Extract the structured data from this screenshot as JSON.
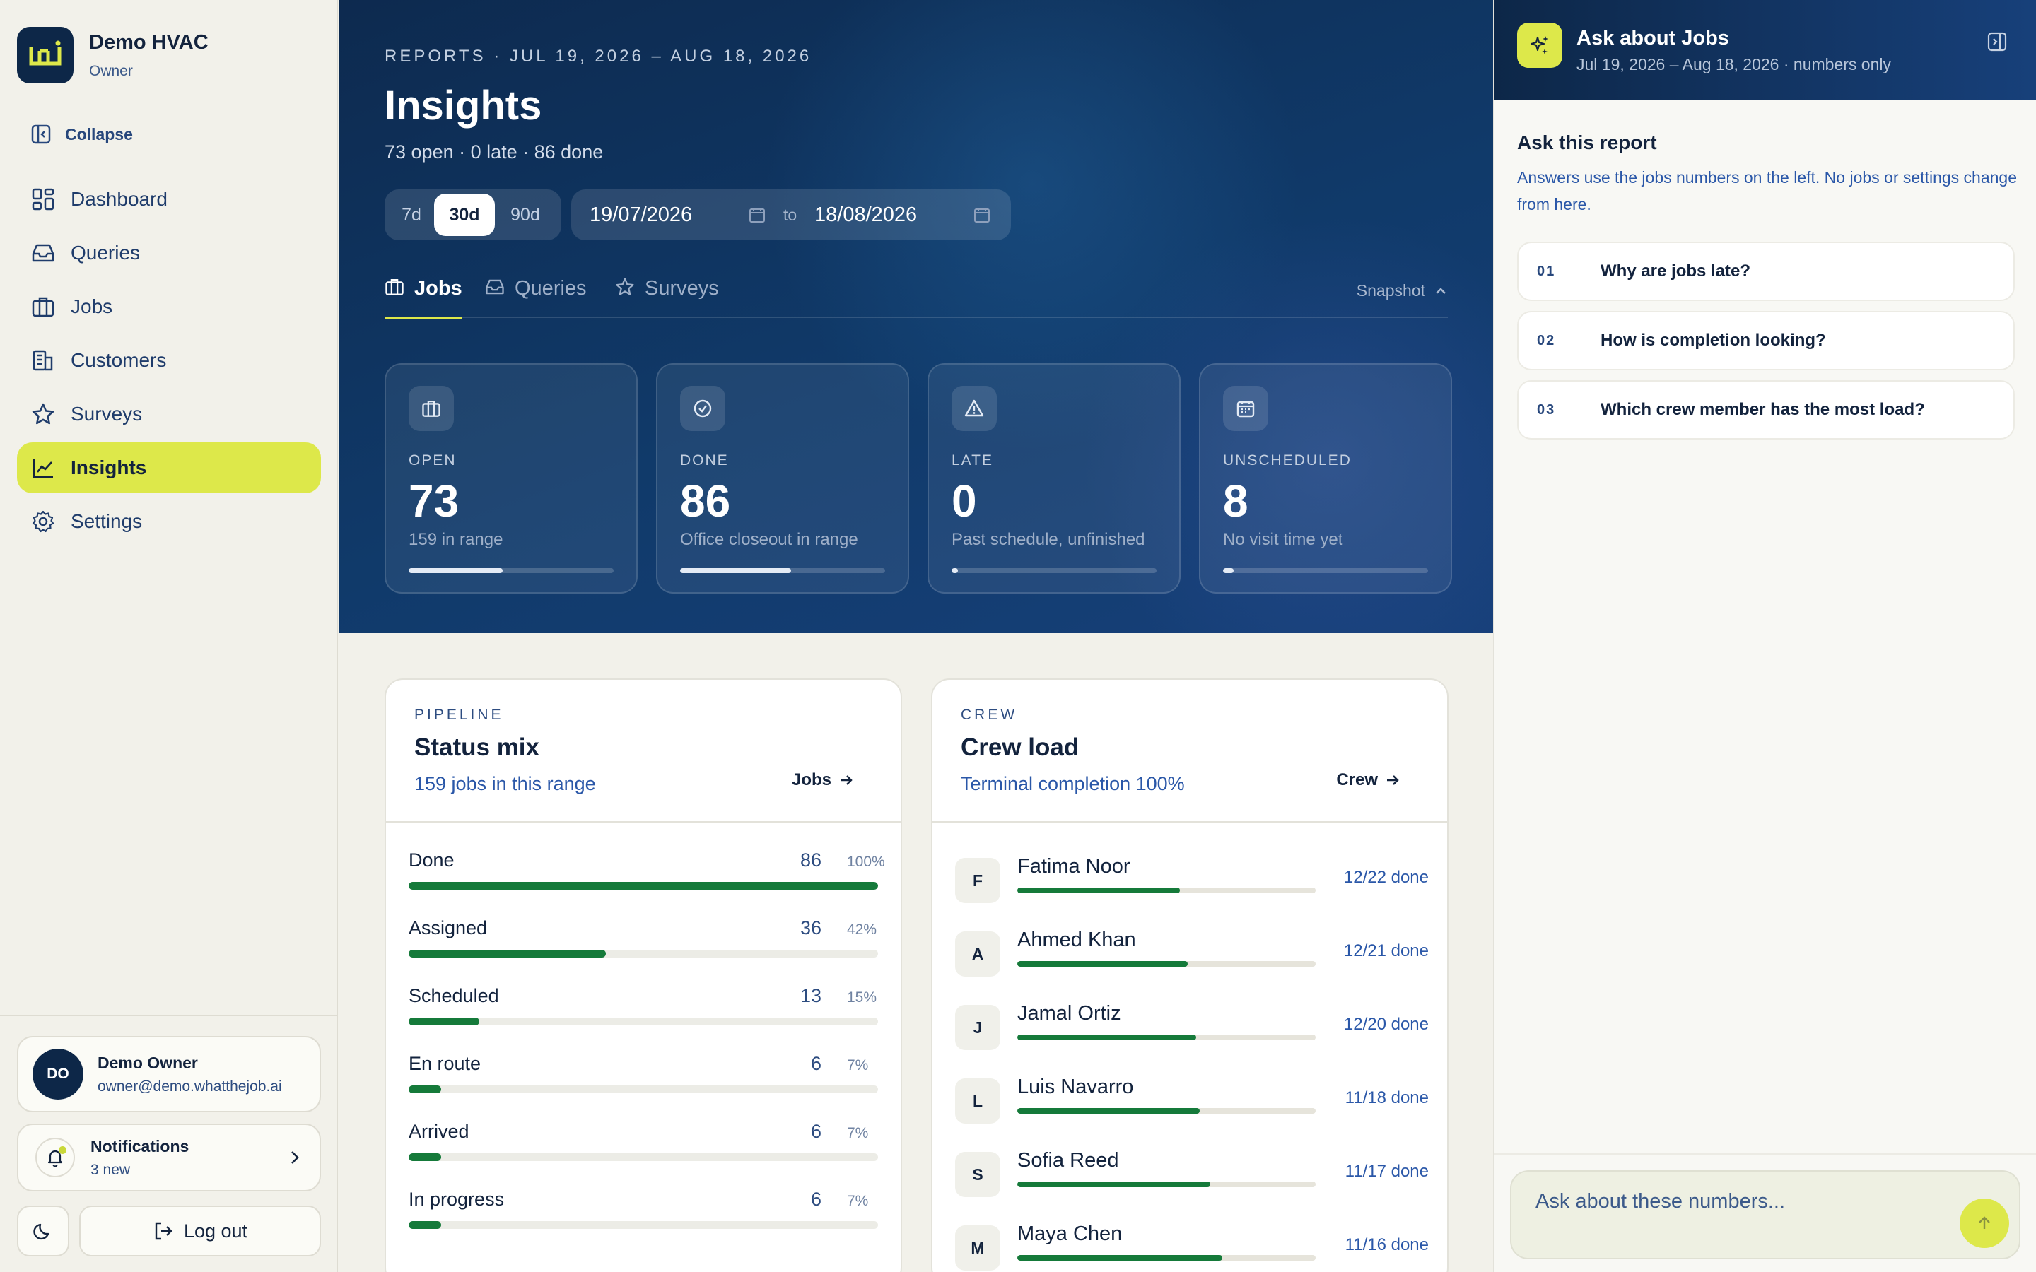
{
  "brand": {
    "name": "Demo HVAC",
    "role": "Owner"
  },
  "sidebar": {
    "collapse_label": "Collapse",
    "items": [
      {
        "label": "Dashboard",
        "icon": "dashboard-icon"
      },
      {
        "label": "Queries",
        "icon": "inbox-icon"
      },
      {
        "label": "Jobs",
        "icon": "briefcase-icon"
      },
      {
        "label": "Customers",
        "icon": "building-icon"
      },
      {
        "label": "Surveys",
        "icon": "star-icon"
      },
      {
        "label": "Insights",
        "icon": "chart-line-icon",
        "active": true
      },
      {
        "label": "Settings",
        "icon": "gear-icon"
      }
    ],
    "user": {
      "initials": "DO",
      "name": "Demo Owner",
      "email": "owner@demo.whatthejob.ai"
    },
    "notifications": {
      "title": "Notifications",
      "count_label": "3 new"
    },
    "logout_label": "Log out"
  },
  "hero": {
    "eyebrow": "REPORTS · JUL 19, 2026 – AUG 18, 2026",
    "title": "Insights",
    "summary": "73 open · 0 late · 86 done",
    "ranges": [
      "7d",
      "30d",
      "90d"
    ],
    "selected_range": "30d",
    "date_from": "19/07/2026",
    "date_to_label": "to",
    "date_to": "18/08/2026",
    "tabs": [
      {
        "label": "Jobs",
        "icon": "briefcase-icon",
        "active": true
      },
      {
        "label": "Queries",
        "icon": "inbox-icon"
      },
      {
        "label": "Surveys",
        "icon": "star-icon"
      }
    ],
    "snapshot_label": "Snapshot",
    "kpis": [
      {
        "label": "OPEN",
        "value": "73",
        "sub": "159 in range",
        "progress": 0.46,
        "icon": "briefcase-icon"
      },
      {
        "label": "DONE",
        "value": "86",
        "sub": "Office closeout in range",
        "progress": 0.54,
        "icon": "check-circle-icon"
      },
      {
        "label": "LATE",
        "value": "0",
        "sub": "Past schedule, unfinished",
        "progress": 0.03,
        "icon": "warning-icon"
      },
      {
        "label": "UNSCHEDULED",
        "value": "8",
        "sub": "No visit time yet",
        "progress": 0.05,
        "icon": "calendar-icon"
      }
    ]
  },
  "pipeline": {
    "eyebrow": "PIPELINE",
    "title": "Status mix",
    "subtitle": "159 jobs in this range",
    "link_label": "Jobs",
    "rows": [
      {
        "name": "Done",
        "count": "86",
        "pct": "100%",
        "fill": 1.0
      },
      {
        "name": "Assigned",
        "count": "36",
        "pct": "42%",
        "fill": 0.42
      },
      {
        "name": "Scheduled",
        "count": "13",
        "pct": "15%",
        "fill": 0.15
      },
      {
        "name": "En route",
        "count": "6",
        "pct": "7%",
        "fill": 0.07
      },
      {
        "name": "Arrived",
        "count": "6",
        "pct": "7%",
        "fill": 0.07
      },
      {
        "name": "In progress",
        "count": "6",
        "pct": "7%",
        "fill": 0.07
      }
    ]
  },
  "crew": {
    "eyebrow": "CREW",
    "title": "Crew load",
    "subtitle": "Terminal completion 100%",
    "link_label": "Crew",
    "members": [
      {
        "initial": "F",
        "name": "Fatima Noor",
        "done": "12/22 done",
        "fill": 0.545
      },
      {
        "initial": "A",
        "name": "Ahmed Khan",
        "done": "12/21 done",
        "fill": 0.571
      },
      {
        "initial": "J",
        "name": "Jamal Ortiz",
        "done": "12/20 done",
        "fill": 0.6
      },
      {
        "initial": "L",
        "name": "Luis Navarro",
        "done": "11/18 done",
        "fill": 0.611
      },
      {
        "initial": "S",
        "name": "Sofia Reed",
        "done": "11/17 done",
        "fill": 0.647
      },
      {
        "initial": "M",
        "name": "Maya Chen",
        "done": "11/16 done",
        "fill": 0.6875
      }
    ]
  },
  "panel": {
    "title": "Ask about Jobs",
    "subtitle": "Jul 19, 2026 – Aug 18, 2026 · numbers only",
    "ask_title": "Ask this report",
    "ask_desc": "Answers use the jobs numbers on the left. No jobs or settings change from here.",
    "questions": [
      {
        "num": "01",
        "text": "Why are jobs late?"
      },
      {
        "num": "02",
        "text": "How is completion looking?"
      },
      {
        "num": "03",
        "text": "Which crew member has the most load?"
      }
    ],
    "input_placeholder": "Ask about these numbers..."
  },
  "colors": {
    "accent": "#dde84a",
    "navy": "#0d2748",
    "progress_green": "#157a3a"
  }
}
